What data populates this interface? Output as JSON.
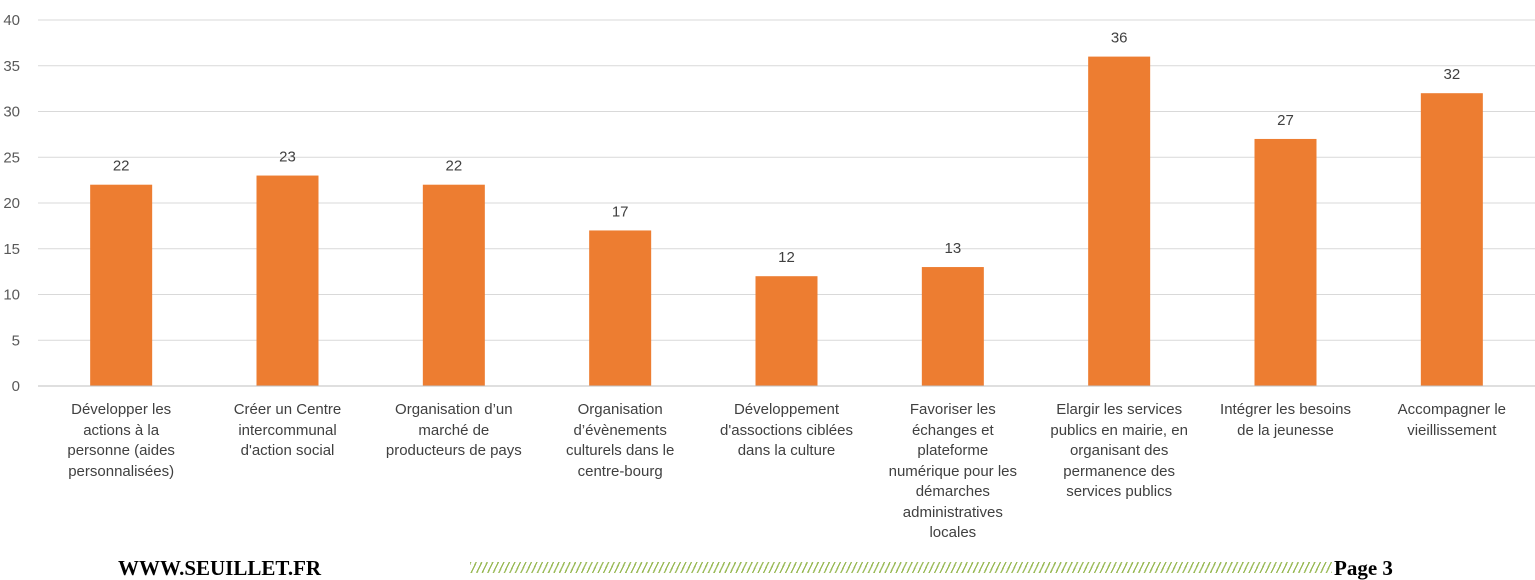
{
  "chart_data": {
    "type": "bar",
    "categories": [
      "Développer les actions à la personne (aides personnalisées)",
      "Créer un Centre intercommunal d'action social",
      "Organisation d’un marché de producteurs de pays",
      "Organisation d’évènements culturels dans le centre-bourg",
      "Développement d'assoctions ciblées dans la culture",
      "Favoriser les échanges et plateforme numérique pour les démarches administratives locales",
      "Elargir les services publics en mairie, en organisant des permanence des services publics",
      "Intégrer les besoins de la jeunesse",
      "Accompagner le vieillissement"
    ],
    "category_label_lines": [
      [
        "Développer les",
        "actions à la",
        "personne (aides",
        "personnalisées)"
      ],
      [
        "Créer un Centre",
        "intercommunal",
        "d'action social"
      ],
      [
        "Organisation d’un",
        "marché de",
        "producteurs de pays"
      ],
      [
        "Organisation",
        "d’évènements",
        "culturels dans le",
        "centre-bourg"
      ],
      [
        "Développement",
        "d'assoctions ciblées",
        "dans la culture"
      ],
      [
        "Favoriser les",
        "échanges et",
        "plateforme",
        "numérique pour les",
        "démarches",
        "administratives",
        "locales"
      ],
      [
        "Elargir les services",
        "publics en mairie, en",
        "organisant des",
        "permanence des",
        "services publics"
      ],
      [
        "Intégrer les besoins",
        "de la jeunesse"
      ],
      [
        "Accompagner le",
        "vieillissement"
      ]
    ],
    "values": [
      22,
      23,
      22,
      17,
      12,
      13,
      36,
      27,
      32
    ],
    "title": "",
    "xlabel": "",
    "ylabel": "",
    "ylim": [
      0,
      40
    ],
    "yticks": [
      0,
      5,
      10,
      15,
      20,
      25,
      30,
      35,
      40
    ],
    "grid": true,
    "data_labels": true,
    "bar_color": "#ed7d31",
    "grid_color": "#d9d9d9"
  },
  "footer": {
    "left": "WWW.SEUILLET.FR",
    "right": "Page 3",
    "stripe_color": "#9bbb59"
  }
}
